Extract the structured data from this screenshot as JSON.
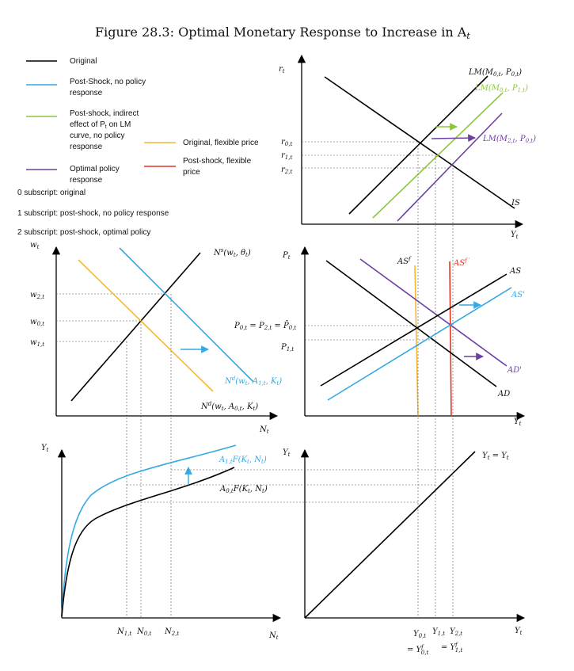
{
  "title": "Figure 28.3: Optimal Monetary Response to Increase in A",
  "title_sub": "t",
  "legend": {
    "original": "Original",
    "post_shock_1": "Post-Shock, no policy",
    "post_shock_2": "response",
    "indirect_1": "Post-shock, indirect",
    "indirect_2": "effect of P",
    "indirect_2b": "t",
    "indirect_2c": " on LM",
    "indirect_3": "curve, no policy",
    "indirect_4": "response",
    "optimal_1": "Optimal policy",
    "optimal_2": "response",
    "flex_original": "Original, flexible price",
    "flex_post_1": "Post-shock, flexible",
    "flex_post_2": "price",
    "note_0": "0 subscript: original",
    "note_1": "1 subscript: post-shock, no policy response",
    "note_2": "2 subscript: post-shock, optimal policy"
  },
  "colors": {
    "original": "#000000",
    "post_shock": "#35a9e1",
    "indirect": "#8cc63f",
    "optimal": "#6c3fa1",
    "flex_original": "#f7b731",
    "flex_post": "#e53222"
  },
  "panels": {
    "islm": {
      "y_axis": "r_t",
      "x_axis": "Y_t",
      "lm0": "LM(M_{0,t}, P_{0,t})",
      "lm1": "LM(M_{0,t}, P_{1,t})",
      "lm2": "LM(M_{2,t}, P_{0,t})",
      "is": "IS",
      "r0": "r_{0,t}",
      "r1": "r_{1,t}",
      "r2": "r_{2,t}"
    },
    "labor": {
      "y_axis": "w_t",
      "x_axis": "N_t",
      "ns": "N^s(w_t, θ_t)",
      "nd1": "N^d(w_t, A_{1,t}, K_t)",
      "nd0": "N^d(w_t, A_{0,t}, K_t)",
      "w2": "w_{2,t}",
      "w0": "w_{0,t}",
      "w1": "w_{1,t}"
    },
    "asad": {
      "y_axis": "P_t",
      "x_axis": "Y_t",
      "asf": "AS^f",
      "asf1": "AS^{f'}",
      "as": "AS",
      "as1": "AS'",
      "ad1": "AD'",
      "ad": "AD",
      "p0": "P_{0,t} = P_{2,t} = P̄_{0,t}",
      "p1": "P_{1,t}"
    },
    "production": {
      "y_axis": "Y_t",
      "x_axis": "N_t",
      "f1": "A_{1,t}F(K_t, N_t)",
      "f0": "A_{0,t}F(K_t, N_t)",
      "n1": "N_{1,t}",
      "n0": "N_{0,t}",
      "n2": "N_{2,t}"
    },
    "line45": {
      "y_axis": "Y_t",
      "x_axis": "Y_t",
      "label": "Y_t = Y_t",
      "y0": "Y_{0,t}",
      "y0f": "= Y^f_{0,t}",
      "y1": "Y_{1,t}",
      "y1f": "= Y^f_{1,t}",
      "y2": "Y_{2,t}"
    }
  }
}
